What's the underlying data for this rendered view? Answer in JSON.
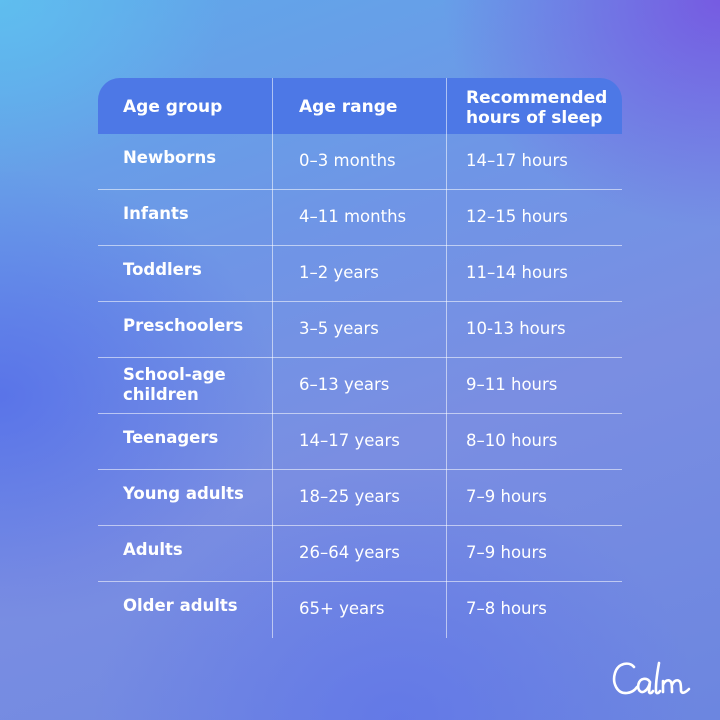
{
  "table": {
    "headers": [
      "Age group",
      "Age range",
      "Recommended hours of sleep"
    ],
    "header_hours_line1": "Recommended",
    "header_hours_line2": "hours of sleep",
    "rows": [
      {
        "group": "Newborns",
        "range": "0–3 months",
        "hours": "14–17 hours"
      },
      {
        "group": "Infants",
        "range": "4–11 months",
        "hours": "12–15 hours"
      },
      {
        "group": "Toddlers",
        "range": "1–2 years",
        "hours": "11–14 hours"
      },
      {
        "group": "Preschoolers",
        "range": "3–5 years",
        "hours": "10-13 hours"
      },
      {
        "group": "School-age children",
        "group_line1": "School-age",
        "group_line2": "children",
        "range": "6–13 years",
        "hours": "9–11 hours"
      },
      {
        "group": "Teenagers",
        "range": "14–17 years",
        "hours": "8–10 hours"
      },
      {
        "group": "Young adults",
        "range": "18–25 years",
        "hours": "7–9 hours"
      },
      {
        "group": "Adults",
        "range": "26–64 years",
        "hours": "7–9 hours"
      },
      {
        "group": "Older adults",
        "range": "65+ years",
        "hours": "7–8 hours"
      }
    ]
  },
  "brand": {
    "logo_text": "Calm"
  },
  "colors": {
    "header_bg": "#4d78e6",
    "text": "#ffffff"
  }
}
